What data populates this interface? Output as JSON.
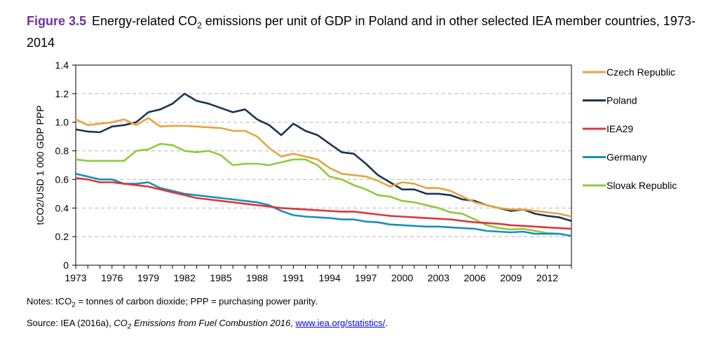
{
  "figure": {
    "label": "Figure 3.5",
    "title_pre": "Energy-related CO",
    "title_sub": "2",
    "title_post": " emissions per unit of GDP in Poland and in other selected IEA member countries, 1973-2014"
  },
  "notes": {
    "prefix": "Notes: tCO",
    "sub": "2",
    "rest": " = tonnes of carbon dioxide; PPP = purchasing power parity."
  },
  "source": {
    "prefix": "Source: IEA (2016a), ",
    "italic_pre": "CO",
    "italic_sub": "2",
    "italic_post": " Emissions from Fuel Combustion 2016",
    "sep": ", ",
    "link": "www.iea.org/statistics/",
    "end": "."
  },
  "chart_data": {
    "type": "line",
    "ylabel": "tCO2/USD 1 000 GDP PPP",
    "ylim": [
      0,
      1.4
    ],
    "yticks": [
      "0",
      "0.2",
      "0.4",
      "0.6",
      "0.8",
      "1.0",
      "1.2",
      "1.4"
    ],
    "xlim": [
      1973,
      2014
    ],
    "xticks": [
      "1973",
      "1976",
      "1979",
      "1982",
      "1985",
      "1988",
      "1991",
      "1994",
      "1997",
      "2000",
      "2003",
      "2006",
      "2009",
      "2012"
    ],
    "grid": "horizontal-dashed",
    "legend_position": "right",
    "x": [
      1973,
      1974,
      1975,
      1976,
      1977,
      1978,
      1979,
      1980,
      1981,
      1982,
      1983,
      1984,
      1985,
      1986,
      1987,
      1988,
      1989,
      1990,
      1991,
      1992,
      1993,
      1994,
      1995,
      1996,
      1997,
      1998,
      1999,
      2000,
      2001,
      2002,
      2003,
      2004,
      2005,
      2006,
      2007,
      2008,
      2009,
      2010,
      2011,
      2012,
      2013,
      2014
    ],
    "series": [
      {
        "name": "Czech Republic",
        "color": "#e8a33d",
        "values": [
          1.02,
          0.98,
          0.99,
          1.0,
          1.02,
          0.98,
          1.03,
          0.97,
          0.975,
          0.975,
          0.97,
          0.965,
          0.96,
          0.94,
          0.94,
          0.9,
          0.82,
          0.76,
          0.78,
          0.76,
          0.74,
          0.68,
          0.64,
          0.63,
          0.62,
          0.59,
          0.55,
          0.58,
          0.57,
          0.54,
          0.54,
          0.52,
          0.48,
          0.44,
          0.42,
          0.4,
          0.39,
          0.39,
          0.38,
          0.37,
          0.36,
          0.34
        ]
      },
      {
        "name": "Poland",
        "color": "#1b3352",
        "values": [
          0.95,
          0.935,
          0.93,
          0.97,
          0.98,
          1.0,
          1.07,
          1.09,
          1.13,
          1.2,
          1.15,
          1.13,
          1.1,
          1.07,
          1.09,
          1.02,
          0.98,
          0.91,
          0.99,
          0.94,
          0.91,
          0.85,
          0.79,
          0.78,
          0.71,
          0.63,
          0.58,
          0.53,
          0.53,
          0.5,
          0.5,
          0.49,
          0.46,
          0.45,
          0.42,
          0.4,
          0.38,
          0.39,
          0.36,
          0.345,
          0.335,
          0.31
        ]
      },
      {
        "name": "IEA29",
        "color": "#d9383a",
        "values": [
          0.61,
          0.6,
          0.58,
          0.58,
          0.57,
          0.56,
          0.55,
          0.53,
          0.51,
          0.49,
          0.47,
          0.46,
          0.45,
          0.44,
          0.43,
          0.42,
          0.41,
          0.4,
          0.395,
          0.39,
          0.385,
          0.38,
          0.375,
          0.375,
          0.365,
          0.355,
          0.345,
          0.34,
          0.335,
          0.33,
          0.325,
          0.32,
          0.31,
          0.3,
          0.295,
          0.29,
          0.28,
          0.275,
          0.27,
          0.265,
          0.26,
          0.255
        ]
      },
      {
        "name": "Germany",
        "color": "#1a8fb8",
        "values": [
          0.64,
          0.62,
          0.6,
          0.6,
          0.57,
          0.57,
          0.58,
          0.54,
          0.52,
          0.5,
          0.49,
          0.48,
          0.47,
          0.46,
          0.45,
          0.44,
          0.42,
          0.38,
          0.35,
          0.34,
          0.335,
          0.33,
          0.32,
          0.32,
          0.305,
          0.3,
          0.285,
          0.28,
          0.275,
          0.27,
          0.27,
          0.265,
          0.26,
          0.255,
          0.24,
          0.235,
          0.23,
          0.235,
          0.22,
          0.22,
          0.22,
          0.205
        ]
      },
      {
        "name": "Slovak Republic",
        "color": "#92c83e",
        "values": [
          0.74,
          0.73,
          0.73,
          0.73,
          0.73,
          0.8,
          0.81,
          0.85,
          0.84,
          0.8,
          0.79,
          0.8,
          0.77,
          0.7,
          0.71,
          0.71,
          0.7,
          0.72,
          0.74,
          0.74,
          0.7,
          0.62,
          0.6,
          0.56,
          0.53,
          0.49,
          0.48,
          0.45,
          0.44,
          0.42,
          0.4,
          0.37,
          0.36,
          0.32,
          0.28,
          0.26,
          0.25,
          0.255,
          0.24,
          0.225,
          0.22,
          0.205
        ]
      }
    ]
  }
}
